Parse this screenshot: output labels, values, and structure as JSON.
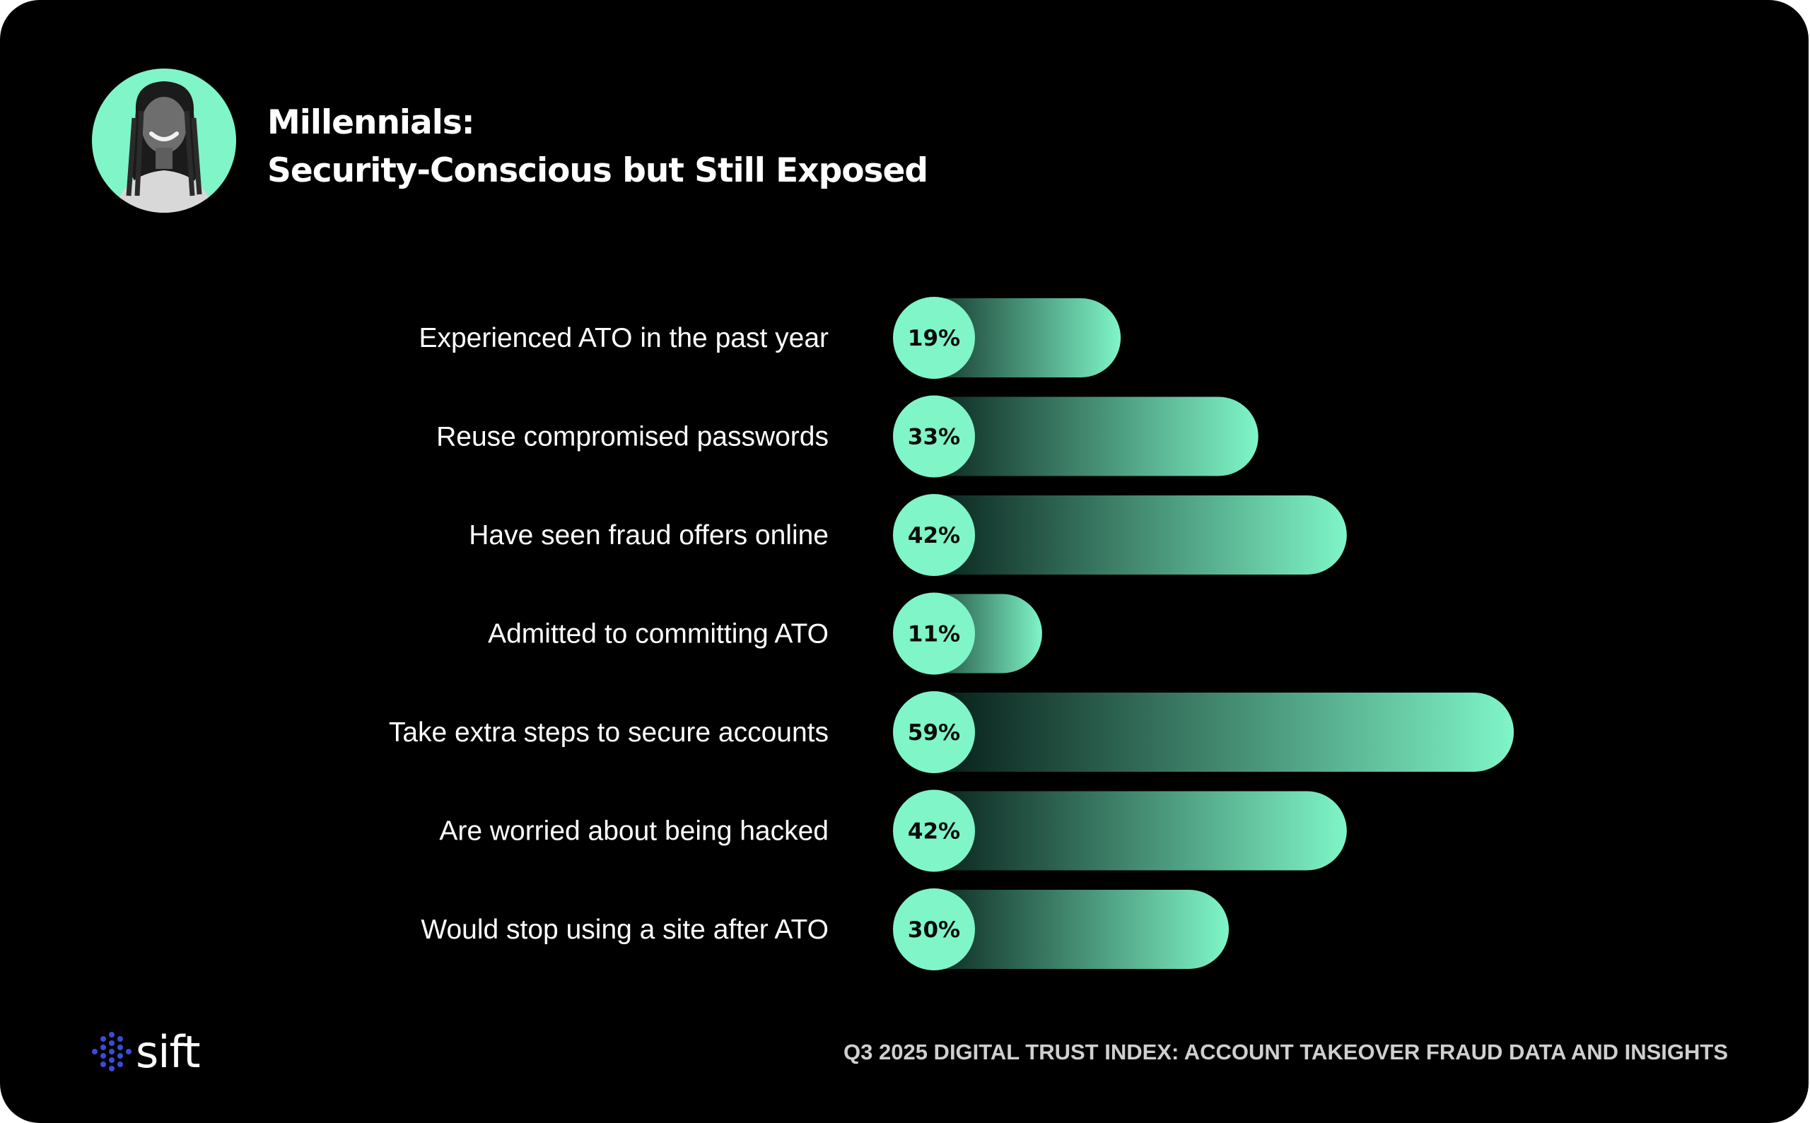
{
  "header": {
    "title_line1": "Millennials:",
    "title_line2": "Security-Conscious but Still Exposed"
  },
  "avatar": {
    "icon": "person-portrait-icon"
  },
  "colors": {
    "background": "#000000",
    "accent": "#7ff5c8",
    "text": "#ffffff",
    "footer_text": "#cfcfcf",
    "logo_dots": "#3b4bd8"
  },
  "chart_data": {
    "type": "bar",
    "orientation": "horizontal",
    "title": "Millennials: Security-Conscious but Still Exposed",
    "unit": "%",
    "categories": [
      "Experienced ATO in the past year",
      "Reuse compromised passwords",
      "Have seen fraud offers online",
      "Admitted to committing ATO",
      "Take extra steps to secure accounts",
      "Are worried about being hacked",
      "Would stop using a site after ATO"
    ],
    "values": [
      19,
      33,
      42,
      11,
      59,
      42,
      30
    ],
    "value_labels": [
      "19%",
      "33%",
      "42%",
      "11%",
      "59%",
      "42%",
      "30%"
    ],
    "xlim": [
      0,
      100
    ],
    "grid": false,
    "legend": "none"
  },
  "logo": {
    "text": "sift"
  },
  "footer": {
    "text": "Q3 2025 DIGITAL TRUST INDEX: ACCOUNT TAKEOVER FRAUD DATA AND INSIGHTS"
  }
}
